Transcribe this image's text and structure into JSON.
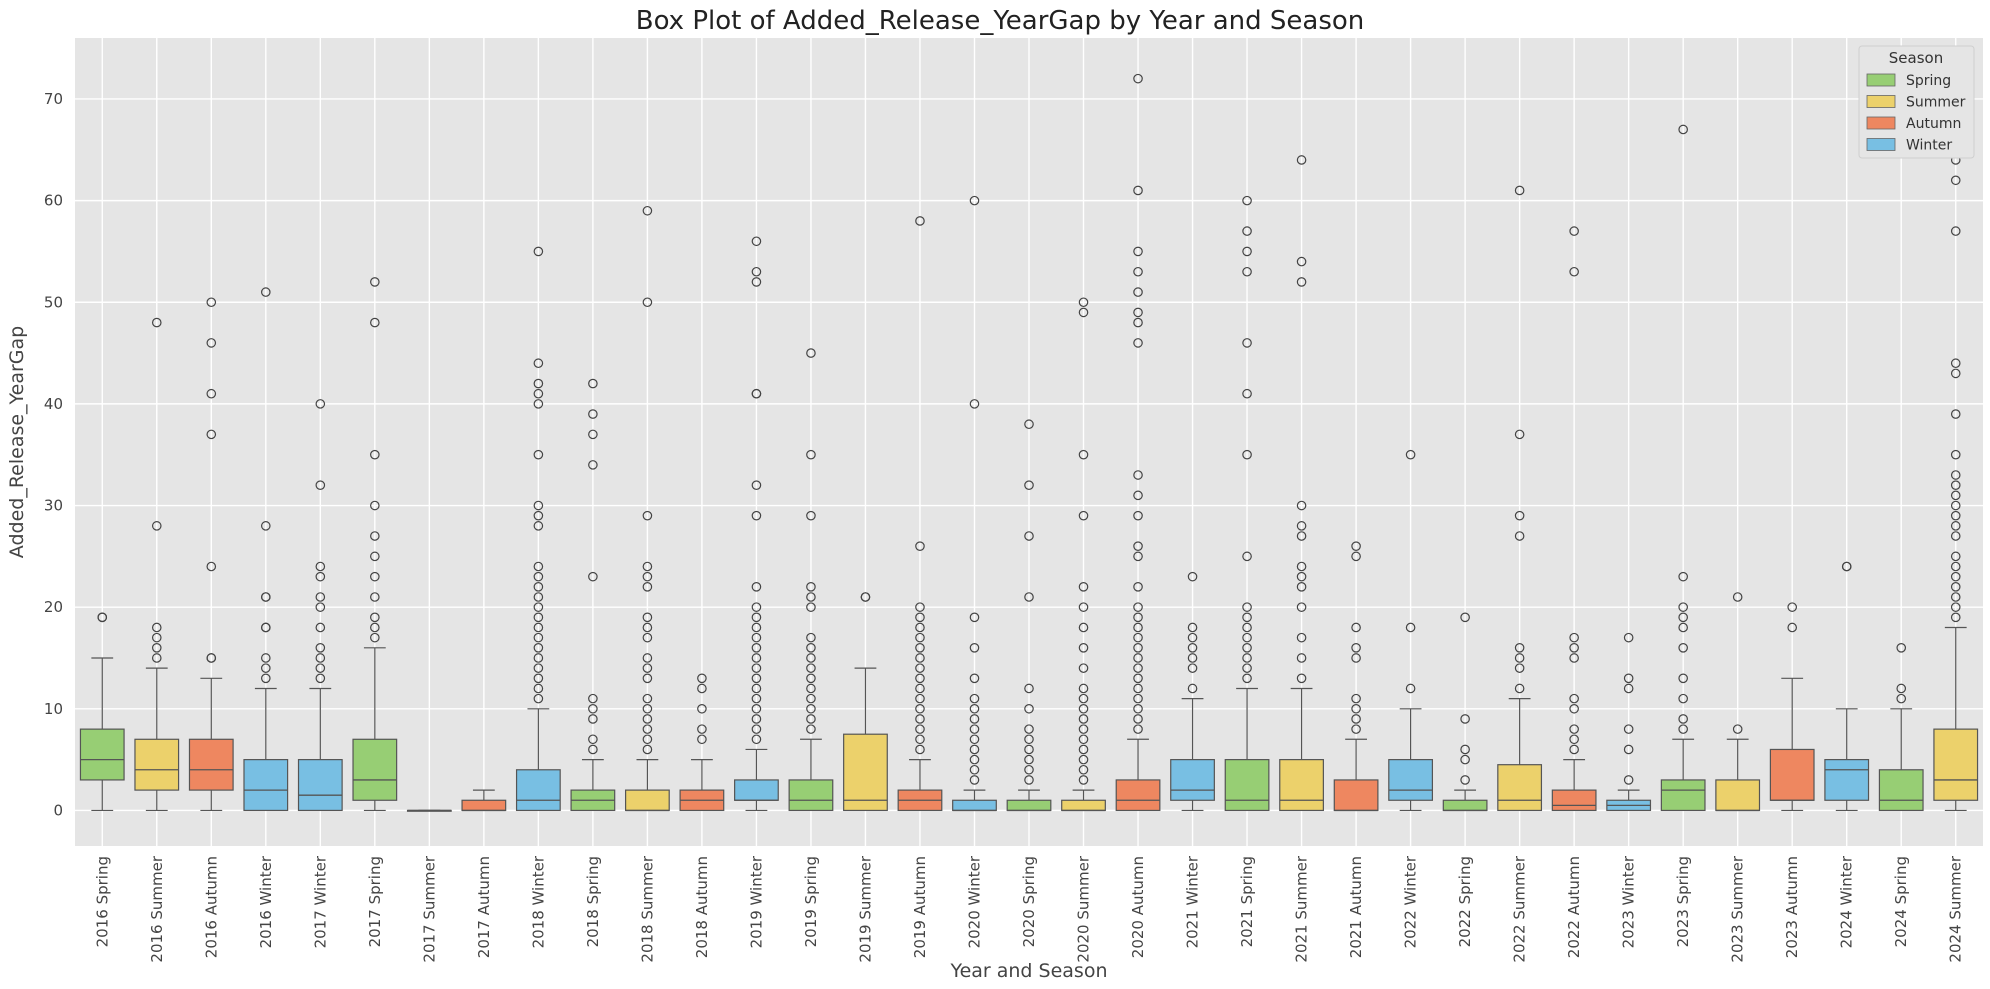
{
  "chart_data": {
    "type": "boxplot",
    "title": "Box Plot of Added_Release_YearGap by Year and Season",
    "xlabel": "Year and Season",
    "ylabel": "Added_Release_YearGap",
    "ylim": [
      -3.5,
      76
    ],
    "yticks": [
      0,
      10,
      20,
      30,
      40,
      50,
      60,
      70
    ],
    "grid": true,
    "legend": {
      "title": "Season",
      "position": "top-right",
      "entries": [
        {
          "name": "Spring",
          "color": "#97ce74"
        },
        {
          "name": "Summer",
          "color": "#ecd16b"
        },
        {
          "name": "Autumn",
          "color": "#ee8760"
        },
        {
          "name": "Winter",
          "color": "#78bfe3"
        }
      ]
    },
    "categories": [
      {
        "label": "2016 Spring",
        "season": "Spring",
        "whislo": 0,
        "q1": 3,
        "med": 5,
        "q3": 8,
        "whishi": 15,
        "fliers": [
          19,
          19
        ]
      },
      {
        "label": "2016 Summer",
        "season": "Summer",
        "whislo": 0,
        "q1": 2,
        "med": 4,
        "q3": 7,
        "whishi": 14,
        "fliers": [
          15,
          16,
          17,
          18,
          28,
          48
        ]
      },
      {
        "label": "2016 Autumn",
        "season": "Autumn",
        "whislo": 0,
        "q1": 2,
        "med": 4,
        "q3": 7,
        "whishi": 13,
        "fliers": [
          15,
          15,
          24,
          37,
          41,
          46,
          50
        ]
      },
      {
        "label": "2016 Winter",
        "season": "Winter",
        "whislo": 0,
        "q1": 0,
        "med": 2,
        "q3": 5,
        "whishi": 12,
        "fliers": [
          13,
          14,
          15,
          18,
          18,
          21,
          21,
          28,
          51
        ]
      },
      {
        "label": "2017 Winter",
        "season": "Winter",
        "whislo": 0,
        "q1": 0,
        "med": 1.5,
        "q3": 5,
        "whishi": 12,
        "fliers": [
          13,
          14,
          15,
          16,
          18,
          20,
          21,
          23,
          24,
          32,
          40
        ]
      },
      {
        "label": "2017 Spring",
        "season": "Spring",
        "whislo": 0,
        "q1": 1,
        "med": 3,
        "q3": 7,
        "whishi": 16,
        "fliers": [
          17,
          18,
          19,
          21,
          23,
          25,
          27,
          30,
          35,
          48,
          52
        ]
      },
      {
        "label": "2017 Summer",
        "season": "Summer",
        "whislo": 0,
        "q1": 0,
        "med": 0,
        "q3": 0,
        "whishi": 0,
        "fliers": []
      },
      {
        "label": "2017 Autumn",
        "season": "Autumn",
        "whislo": 0,
        "q1": 0,
        "med": 0,
        "q3": 1,
        "whishi": 2,
        "fliers": []
      },
      {
        "label": "2018 Winter",
        "season": "Winter",
        "whislo": 0,
        "q1": 0,
        "med": 1,
        "q3": 4,
        "whishi": 10,
        "fliers": [
          11,
          12,
          13,
          14,
          15,
          16,
          17,
          18,
          19,
          20,
          21,
          22,
          23,
          24,
          28,
          29,
          30,
          35,
          40,
          41,
          42,
          44,
          55
        ]
      },
      {
        "label": "2018 Spring",
        "season": "Spring",
        "whislo": 0,
        "q1": 0,
        "med": 1,
        "q3": 2,
        "whishi": 5,
        "fliers": [
          6,
          7,
          9,
          10,
          11,
          23,
          34,
          37,
          39,
          42
        ]
      },
      {
        "label": "2018 Summer",
        "season": "Summer",
        "whislo": 0,
        "q1": 0,
        "med": 0,
        "q3": 2,
        "whishi": 5,
        "fliers": [
          6,
          7,
          8,
          9,
          10,
          11,
          13,
          14,
          15,
          17,
          18,
          19,
          22,
          23,
          24,
          29,
          50,
          59
        ]
      },
      {
        "label": "2018 Autumn",
        "season": "Autumn",
        "whislo": 0,
        "q1": 0,
        "med": 1,
        "q3": 2,
        "whishi": 5,
        "fliers": [
          7,
          8,
          10,
          12,
          13
        ]
      },
      {
        "label": "2019 Winter",
        "season": "Winter",
        "whislo": 0,
        "q1": 1,
        "med": 1,
        "q3": 3,
        "whishi": 6,
        "fliers": [
          7,
          8,
          9,
          10,
          11,
          12,
          13,
          14,
          15,
          16,
          17,
          18,
          19,
          20,
          22,
          29,
          32,
          41,
          41,
          52,
          53,
          56
        ]
      },
      {
        "label": "2019 Spring",
        "season": "Spring",
        "whislo": 0,
        "q1": 0,
        "med": 1,
        "q3": 3,
        "whishi": 7,
        "fliers": [
          8,
          9,
          10,
          11,
          12,
          13,
          14,
          15,
          16,
          17,
          20,
          21,
          22,
          29,
          35,
          45
        ]
      },
      {
        "label": "2019 Summer",
        "season": "Summer",
        "whislo": 0,
        "q1": 0,
        "med": 1,
        "q3": 7.5,
        "whishi": 14,
        "fliers": [
          21,
          21
        ]
      },
      {
        "label": "2019 Autumn",
        "season": "Autumn",
        "whislo": 0,
        "q1": 0,
        "med": 1,
        "q3": 2,
        "whishi": 5,
        "fliers": [
          6,
          7,
          8,
          9,
          10,
          11,
          12,
          13,
          14,
          15,
          16,
          17,
          18,
          19,
          20,
          26,
          58
        ]
      },
      {
        "label": "2020 Winter",
        "season": "Winter",
        "whislo": 0,
        "q1": 0,
        "med": 0,
        "q3": 1,
        "whishi": 2,
        "fliers": [
          3,
          4,
          5,
          6,
          7,
          8,
          9,
          10,
          11,
          13,
          16,
          19,
          40,
          60
        ]
      },
      {
        "label": "2020 Spring",
        "season": "Spring",
        "whislo": 0,
        "q1": 0,
        "med": 0,
        "q3": 1,
        "whishi": 2,
        "fliers": [
          3,
          4,
          5,
          6,
          7,
          8,
          10,
          12,
          21,
          27,
          32,
          38
        ]
      },
      {
        "label": "2020 Summer",
        "season": "Summer",
        "whislo": 0,
        "q1": 0,
        "med": 0,
        "q3": 1,
        "whishi": 2,
        "fliers": [
          3,
          4,
          5,
          6,
          7,
          8,
          9,
          10,
          11,
          12,
          14,
          16,
          18,
          20,
          22,
          29,
          35,
          49,
          50
        ]
      },
      {
        "label": "2020 Autumn",
        "season": "Autumn",
        "whislo": 0,
        "q1": 0,
        "med": 1,
        "q3": 3,
        "whishi": 7,
        "fliers": [
          8,
          9,
          10,
          11,
          12,
          13,
          14,
          15,
          16,
          17,
          18,
          19,
          20,
          22,
          25,
          26,
          29,
          31,
          33,
          46,
          48,
          49,
          51,
          53,
          55,
          61,
          72
        ]
      },
      {
        "label": "2021 Winter",
        "season": "Winter",
        "whislo": 0,
        "q1": 1,
        "med": 2,
        "q3": 5,
        "whishi": 11,
        "fliers": [
          12,
          14,
          15,
          16,
          17,
          18,
          23
        ]
      },
      {
        "label": "2021 Spring",
        "season": "Spring",
        "whislo": 0,
        "q1": 0,
        "med": 1,
        "q3": 5,
        "whishi": 12,
        "fliers": [
          13,
          14,
          15,
          16,
          17,
          18,
          19,
          20,
          25,
          35,
          41,
          46,
          53,
          55,
          57,
          60
        ]
      },
      {
        "label": "2021 Summer",
        "season": "Summer",
        "whislo": 0,
        "q1": 0,
        "med": 1,
        "q3": 5,
        "whishi": 12,
        "fliers": [
          13,
          15,
          17,
          20,
          22,
          23,
          24,
          27,
          28,
          30,
          52,
          54,
          64
        ]
      },
      {
        "label": "2021 Autumn",
        "season": "Autumn",
        "whislo": 0,
        "q1": 0,
        "med": 0,
        "q3": 3,
        "whishi": 7,
        "fliers": [
          8,
          9,
          10,
          11,
          15,
          16,
          18,
          25,
          26
        ]
      },
      {
        "label": "2022 Winter",
        "season": "Winter",
        "whislo": 0,
        "q1": 1,
        "med": 2,
        "q3": 5,
        "whishi": 10,
        "fliers": [
          12,
          18,
          35
        ]
      },
      {
        "label": "2022 Spring",
        "season": "Spring",
        "whislo": 0,
        "q1": 0,
        "med": 0,
        "q3": 1,
        "whishi": 2,
        "fliers": [
          3,
          5,
          6,
          9,
          19
        ]
      },
      {
        "label": "2022 Summer",
        "season": "Summer",
        "whislo": 0,
        "q1": 0,
        "med": 1,
        "q3": 4.5,
        "whishi": 11,
        "fliers": [
          12,
          14,
          15,
          16,
          27,
          29,
          37,
          61
        ]
      },
      {
        "label": "2022 Autumn",
        "season": "Autumn",
        "whislo": 0,
        "q1": 0,
        "med": 0.5,
        "q3": 2,
        "whishi": 5,
        "fliers": [
          6,
          7,
          8,
          10,
          11,
          15,
          16,
          17,
          53,
          57
        ]
      },
      {
        "label": "2023 Winter",
        "season": "Winter",
        "whislo": 0,
        "q1": 0,
        "med": 0.5,
        "q3": 1,
        "whishi": 2,
        "fliers": [
          3,
          6,
          8,
          12,
          13,
          17
        ]
      },
      {
        "label": "2023 Spring",
        "season": "Spring",
        "whislo": 0,
        "q1": 0,
        "med": 2,
        "q3": 3,
        "whishi": 7,
        "fliers": [
          8,
          9,
          11,
          13,
          16,
          18,
          19,
          20,
          23,
          67
        ]
      },
      {
        "label": "2023 Summer",
        "season": "Summer",
        "whislo": 0,
        "q1": 0,
        "med": 0,
        "q3": 3,
        "whishi": 7,
        "fliers": [
          8,
          21
        ]
      },
      {
        "label": "2023 Autumn",
        "season": "Autumn",
        "whislo": 0,
        "q1": 1,
        "med": 1,
        "q3": 6,
        "whishi": 13,
        "fliers": [
          18,
          20
        ]
      },
      {
        "label": "2024 Winter",
        "season": "Winter",
        "whislo": 0,
        "q1": 1,
        "med": 4,
        "q3": 5,
        "whishi": 10,
        "fliers": [
          24,
          24
        ]
      },
      {
        "label": "2024 Spring",
        "season": "Spring",
        "whislo": 0,
        "q1": 0,
        "med": 1,
        "q3": 4,
        "whishi": 10,
        "fliers": [
          11,
          12,
          16
        ]
      },
      {
        "label": "2024 Summer",
        "season": "Summer",
        "whislo": 0,
        "q1": 1,
        "med": 3,
        "q3": 8,
        "whishi": 18,
        "fliers": [
          19,
          20,
          21,
          22,
          23,
          24,
          25,
          27,
          28,
          29,
          30,
          31,
          32,
          33,
          35,
          39,
          43,
          44,
          57,
          62,
          64
        ]
      }
    ]
  }
}
